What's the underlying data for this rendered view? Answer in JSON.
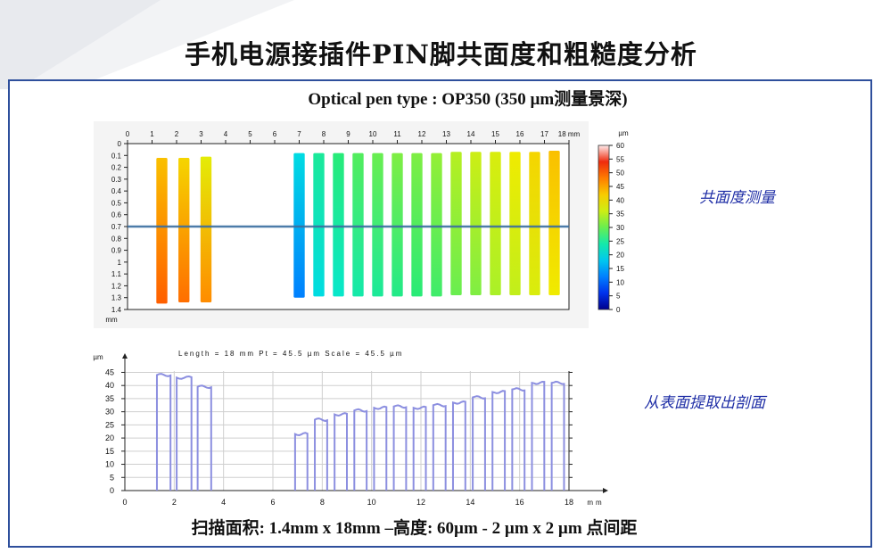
{
  "slide": {
    "title": "手机电源接插件PIN脚共面度和粗糙度分析",
    "subtitle": "Optical pen type : OP350 (350 µm测量景深)",
    "note_top": "共面度测量",
    "note_bottom": "从表面提取出剖面",
    "footer": "扫描面积: 1.4mm x 18mm –高度: 60µm - 2 µm x 2 µm 点间距"
  },
  "chart_data": [
    {
      "type": "heatmap",
      "x_ticks": [
        "0",
        "1",
        "2",
        "3",
        "4",
        "5",
        "6",
        "7",
        "8",
        "9",
        "10",
        "11",
        "12",
        "13",
        "14",
        "15",
        "16",
        "17",
        "18 mm"
      ],
      "y_ticks": [
        "0",
        "0.1",
        "0.2",
        "0.3",
        "0.4",
        "0.5",
        "0.6",
        "0.7",
        "0.8",
        "0.9",
        "1",
        "1.1",
        "1.2",
        "1.3",
        "1.4"
      ],
      "y_unit": "mm",
      "colorbar_unit": "µm",
      "colorbar_ticks": [
        "60",
        "55",
        "50",
        "45",
        "40",
        "35",
        "30",
        "25",
        "20",
        "15",
        "10",
        "5",
        "0"
      ],
      "xlim": [
        0,
        18
      ],
      "ylim": [
        0,
        1.4
      ],
      "profile_line_y": 0.7,
      "pins": [
        {
          "x": 1.4,
          "y_start": 0.12,
          "y_end": 1.35,
          "top_um": 43,
          "bottom_um": 50
        },
        {
          "x": 2.3,
          "y_start": 0.12,
          "y_end": 1.34,
          "top_um": 41,
          "bottom_um": 49
        },
        {
          "x": 3.2,
          "y_start": 0.11,
          "y_end": 1.34,
          "top_um": 38,
          "bottom_um": 47
        },
        {
          "x": 7.0,
          "y_start": 0.08,
          "y_end": 1.3,
          "top_um": 20,
          "bottom_um": 12
        },
        {
          "x": 7.8,
          "y_start": 0.08,
          "y_end": 1.29,
          "top_um": 25,
          "bottom_um": 20
        },
        {
          "x": 8.6,
          "y_start": 0.08,
          "y_end": 1.29,
          "top_um": 27,
          "bottom_um": 22
        },
        {
          "x": 9.4,
          "y_start": 0.08,
          "y_end": 1.29,
          "top_um": 29,
          "bottom_um": 24
        },
        {
          "x": 10.2,
          "y_start": 0.08,
          "y_end": 1.29,
          "top_um": 30,
          "bottom_um": 25
        },
        {
          "x": 11.0,
          "y_start": 0.08,
          "y_end": 1.29,
          "top_um": 31,
          "bottom_um": 26
        },
        {
          "x": 11.8,
          "y_start": 0.08,
          "y_end": 1.29,
          "top_um": 31,
          "bottom_um": 27
        },
        {
          "x": 12.6,
          "y_start": 0.08,
          "y_end": 1.29,
          "top_um": 32,
          "bottom_um": 28
        },
        {
          "x": 13.4,
          "y_start": 0.07,
          "y_end": 1.28,
          "top_um": 34,
          "bottom_um": 30
        },
        {
          "x": 14.2,
          "y_start": 0.07,
          "y_end": 1.28,
          "top_um": 36,
          "bottom_um": 31
        },
        {
          "x": 15.0,
          "y_start": 0.07,
          "y_end": 1.28,
          "top_um": 37,
          "bottom_um": 33
        },
        {
          "x": 15.8,
          "y_start": 0.07,
          "y_end": 1.28,
          "top_um": 39,
          "bottom_um": 35
        },
        {
          "x": 16.6,
          "y_start": 0.07,
          "y_end": 1.28,
          "top_um": 41,
          "bottom_um": 37
        },
        {
          "x": 17.4,
          "y_start": 0.06,
          "y_end": 1.28,
          "top_um": 43,
          "bottom_um": 39
        }
      ]
    },
    {
      "type": "line",
      "header": "Length = 18 mm   Pt = 45.5 µm     Scale = 45.5 µm",
      "y_unit": "µm",
      "x_unit": "mm",
      "x_ticks": [
        "0",
        "2",
        "4",
        "6",
        "8",
        "10",
        "12",
        "14",
        "16",
        "18"
      ],
      "y_ticks": [
        "0",
        "5",
        "10",
        "15",
        "20",
        "25",
        "30",
        "35",
        "40",
        "45"
      ],
      "xlim": [
        0,
        18
      ],
      "ylim": [
        0,
        45.5
      ],
      "segments": [
        {
          "x0": 1.3,
          "x1": 1.85,
          "y": 44
        },
        {
          "x0": 2.1,
          "x1": 2.7,
          "y": 43
        },
        {
          "x0": 2.95,
          "x1": 3.5,
          "y": 39.5
        },
        {
          "x0": 6.9,
          "x1": 7.4,
          "y": 21.5
        },
        {
          "x0": 7.7,
          "x1": 8.2,
          "y": 27
        },
        {
          "x0": 8.5,
          "x1": 9.0,
          "y": 29
        },
        {
          "x0": 9.3,
          "x1": 9.8,
          "y": 30.5
        },
        {
          "x0": 10.1,
          "x1": 10.6,
          "y": 31.5
        },
        {
          "x0": 10.9,
          "x1": 11.4,
          "y": 32
        },
        {
          "x0": 11.7,
          "x1": 12.2,
          "y": 31.5
        },
        {
          "x0": 12.5,
          "x1": 13.0,
          "y": 32.5
        },
        {
          "x0": 13.3,
          "x1": 13.8,
          "y": 33.5
        },
        {
          "x0": 14.1,
          "x1": 14.6,
          "y": 35.5
        },
        {
          "x0": 14.9,
          "x1": 15.4,
          "y": 37.5
        },
        {
          "x0": 15.7,
          "x1": 16.2,
          "y": 38.5
        },
        {
          "x0": 16.5,
          "x1": 17.0,
          "y": 41
        },
        {
          "x0": 17.3,
          "x1": 17.8,
          "y": 41
        }
      ]
    }
  ]
}
